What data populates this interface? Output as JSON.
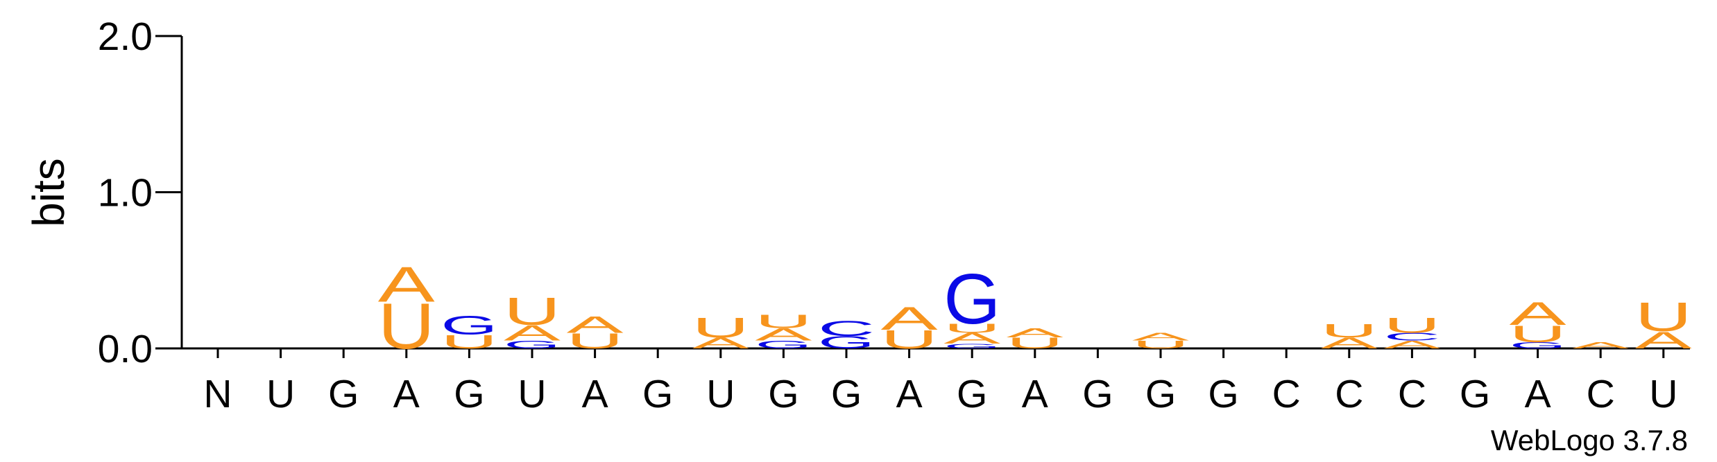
{
  "chart_data": {
    "type": "logo",
    "ylabel": "bits",
    "footer": "WebLogo 3.7.8",
    "ylim": [
      0,
      2
    ],
    "yticks": [
      {
        "value": 0,
        "label": "0.0"
      },
      {
        "value": 1,
        "label": "1.0"
      },
      {
        "value": 2,
        "label": "2.0"
      }
    ],
    "colors": {
      "A": "#f7941d",
      "U": "#f7941d",
      "G": "#0a0ae6",
      "C": "#0a0ae6"
    },
    "categories": [
      "N",
      "U",
      "G",
      "A",
      "G",
      "U",
      "A",
      "G",
      "U",
      "G",
      "G",
      "A",
      "G",
      "A",
      "G",
      "G",
      "G",
      "C",
      "C",
      "C",
      "G",
      "A",
      "C",
      "U"
    ],
    "stacks": [
      [],
      [],
      [],
      [
        {
          "letter": "U",
          "value": 0.3
        },
        {
          "letter": "A",
          "value": 0.23
        }
      ],
      [
        {
          "letter": "U",
          "value": 0.09
        },
        {
          "letter": "G",
          "value": 0.12
        }
      ],
      [
        {
          "letter": "G",
          "value": 0.05
        },
        {
          "letter": "A",
          "value": 0.1
        },
        {
          "letter": "U",
          "value": 0.18
        }
      ],
      [
        {
          "letter": "U",
          "value": 0.1
        },
        {
          "letter": "A",
          "value": 0.11
        }
      ],
      [],
      [
        {
          "letter": "A",
          "value": 0.07
        },
        {
          "letter": "U",
          "value": 0.13
        }
      ],
      [
        {
          "letter": "G",
          "value": 0.05
        },
        {
          "letter": "A",
          "value": 0.08
        },
        {
          "letter": "U",
          "value": 0.09
        }
      ],
      [
        {
          "letter": "G",
          "value": 0.08
        },
        {
          "letter": "C",
          "value": 0.1
        }
      ],
      [
        {
          "letter": "U",
          "value": 0.12
        },
        {
          "letter": "A",
          "value": 0.15
        }
      ],
      [
        {
          "letter": "G",
          "value": 0.03
        },
        {
          "letter": "A",
          "value": 0.07
        },
        {
          "letter": "U",
          "value": 0.06
        },
        {
          "letter": "G",
          "value": 0.33
        }
      ],
      [
        {
          "letter": "U",
          "value": 0.07
        },
        {
          "letter": "A",
          "value": 0.06
        }
      ],
      [],
      [
        {
          "letter": "U",
          "value": 0.05
        },
        {
          "letter": "A",
          "value": 0.05
        }
      ],
      [],
      [],
      [
        {
          "letter": "A",
          "value": 0.07
        },
        {
          "letter": "U",
          "value": 0.09
        }
      ],
      [
        {
          "letter": "A",
          "value": 0.05
        },
        {
          "letter": "C",
          "value": 0.05
        },
        {
          "letter": "U",
          "value": 0.1
        }
      ],
      [],
      [
        {
          "letter": "G",
          "value": 0.04
        },
        {
          "letter": "U",
          "value": 0.11
        },
        {
          "letter": "A",
          "value": 0.15
        }
      ],
      [
        {
          "letter": "A",
          "value": 0.04
        }
      ],
      [
        {
          "letter": "A",
          "value": 0.11
        },
        {
          "letter": "U",
          "value": 0.19
        }
      ]
    ]
  }
}
